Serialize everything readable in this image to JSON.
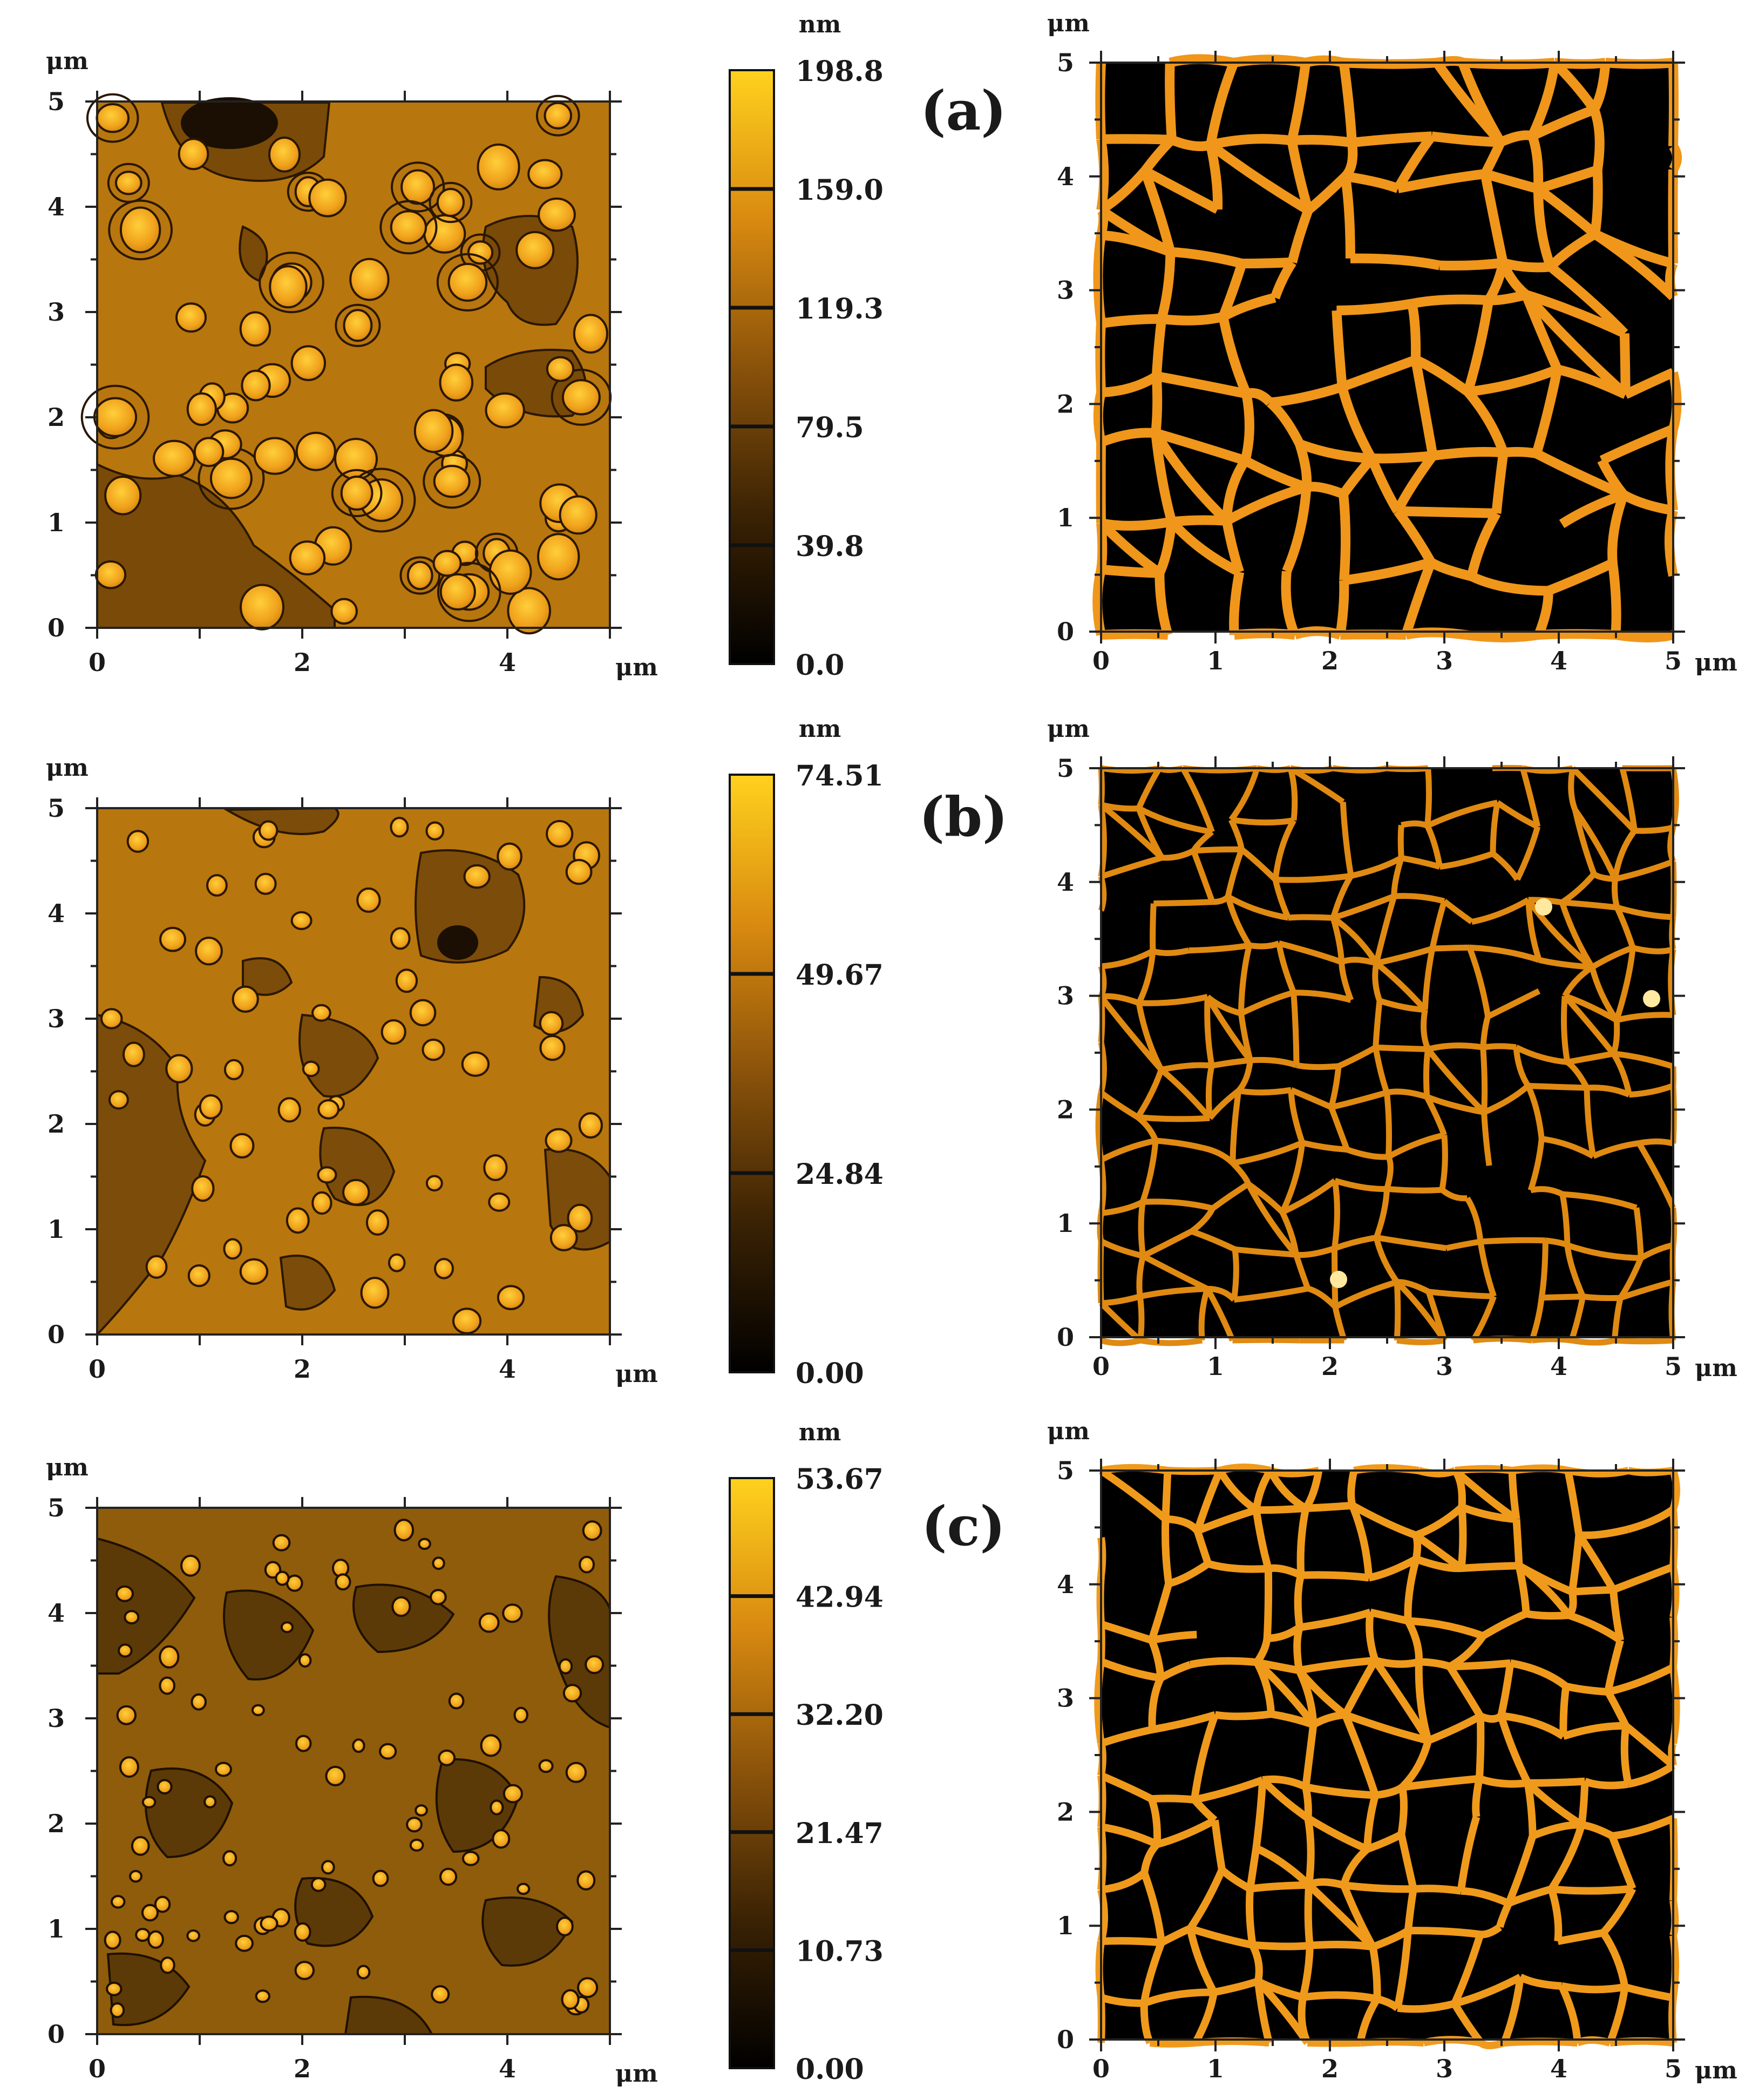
{
  "figure": {
    "unit_um": "μm",
    "unit_nm": "nm",
    "panels": [
      {
        "tag": "(a)",
        "height_x_ticks": [
          "0",
          "2",
          "4"
        ],
        "height_y_ticks": [
          "0",
          "1",
          "2",
          "3",
          "4",
          "5"
        ],
        "colorbar_ticks": [
          "0.0",
          "39.8",
          "79.5",
          "119.3",
          "159.0",
          "198.8"
        ],
        "phase_x_ticks": [
          "0",
          "1",
          "2",
          "3",
          "4",
          "5"
        ],
        "phase_y_ticks": [
          "0",
          "1",
          "2",
          "3",
          "4",
          "5"
        ]
      },
      {
        "tag": "(b)",
        "height_x_ticks": [
          "0",
          "2",
          "4"
        ],
        "height_y_ticks": [
          "0",
          "1",
          "2",
          "3",
          "4",
          "5"
        ],
        "colorbar_ticks": [
          "0.00",
          "24.84",
          "49.67",
          "74.51"
        ],
        "phase_x_ticks": [
          "0",
          "1",
          "2",
          "3",
          "4",
          "5"
        ],
        "phase_y_ticks": [
          "0",
          "1",
          "2",
          "3",
          "4",
          "5"
        ]
      },
      {
        "tag": "(c)",
        "height_x_ticks": [
          "0",
          "2",
          "4"
        ],
        "height_y_ticks": [
          "0",
          "1",
          "2",
          "3",
          "4",
          "5"
        ],
        "colorbar_ticks": [
          "0.00",
          "10.73",
          "21.47",
          "32.20",
          "42.94",
          "53.67"
        ],
        "phase_x_ticks": [
          "0",
          "1",
          "2",
          "3",
          "4",
          "5"
        ],
        "phase_y_ticks": [
          "0",
          "1",
          "2",
          "3",
          "4",
          "5"
        ]
      }
    ]
  },
  "colors": {
    "colorbar_top": "#ffd21e",
    "colorbar_mid": "#e08a0c",
    "colorbar_bottom": "#000000",
    "height_map_base": "#b8760e",
    "network": "#f0961a",
    "phase_background": "#000000"
  }
}
